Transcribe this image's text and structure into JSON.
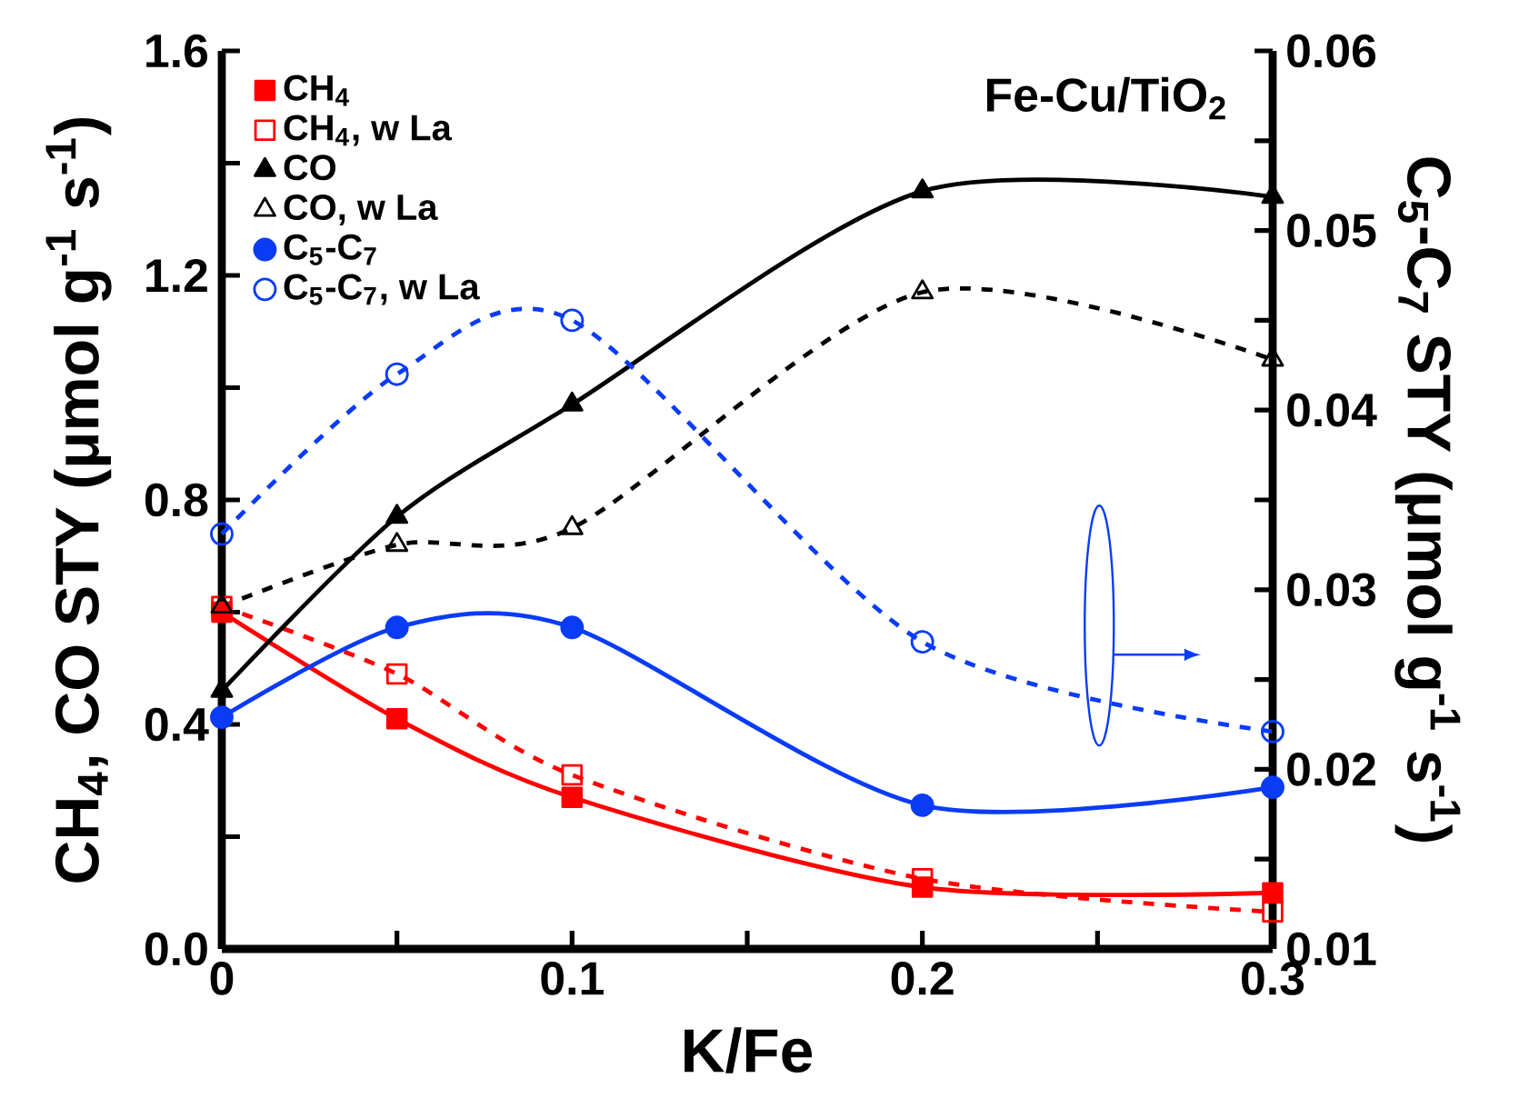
{
  "chart_data": {
    "type": "line",
    "annotations": [
      "Fe-Cu/TiO$_{2}$"
    ],
    "xlabel": "K/Fe",
    "ylabel": "CH$_{4}$, CO STY (μmol g$^{-1}$ s$^{-1}$)",
    "y2label": "C$_{5}$-C$_{7}$ STY (μmol g$^{-1}$ s$^{-1}$)",
    "x": [
      0,
      0.05,
      0.1,
      0.2,
      0.3
    ],
    "xlim": [
      0,
      0.3
    ],
    "xticks": [
      0,
      {
        "value": 0.05,
        "label": null
      },
      0.1,
      {
        "value": 0.15,
        "label": null
      },
      0.2,
      {
        "value": 0.25,
        "label": null
      },
      0.3
    ],
    "ylim": [
      0,
      1.6
    ],
    "yticks": [
      {
        "value": 0,
        "label": "0.0"
      },
      {
        "value": 0.2,
        "label": null
      },
      0.4,
      {
        "value": 0.6,
        "label": null
      },
      0.8,
      {
        "value": 1.0,
        "label": null
      },
      1.2,
      {
        "value": 1.4,
        "label": null
      },
      1.6
    ],
    "y2lim": [
      0.01,
      0.06
    ],
    "y2ticks": [
      0.01,
      {
        "value": 0.015,
        "label": null
      },
      0.02,
      {
        "value": 0.025,
        "label": null
      },
      0.03,
      {
        "value": 0.035,
        "label": null
      },
      0.04,
      {
        "value": 0.045,
        "label": null
      },
      0.05,
      {
        "value": 0.055,
        "label": null
      },
      0.06
    ],
    "grid": false,
    "legend": "top left",
    "series": [
      {
        "name": "CH$_{4}$",
        "color": "#ff0000",
        "marker": "square",
        "line_style": "solid",
        "values": [
          0.6,
          0.41,
          0.27,
          0.11,
          0.1
        ]
      },
      {
        "name": "CH$_{4}$, w La",
        "color": "#ff0000",
        "marker": "square",
        "line_style": "dashed",
        "values": [
          0.61,
          0.49,
          0.31,
          0.125,
          0.066
        ]
      },
      {
        "name": "CO",
        "color": "#000000",
        "marker": "triangle",
        "line_style": "solid",
        "values": [
          0.46,
          0.77,
          0.97,
          1.35,
          1.34
        ]
      },
      {
        "name": "CO, w La",
        "color": "#000000",
        "marker": "triangle",
        "line_style": "dashed",
        "values": [
          0.61,
          0.72,
          0.75,
          1.17,
          1.05
        ]
      },
      {
        "name": "C$_{5}$-C$_{7}$",
        "color": "#0a3cf5",
        "marker": "circle",
        "line_style": "solid",
        "axis": "y2",
        "values": [
          0.0229,
          0.0279,
          0.0279,
          0.018,
          0.019
        ]
      },
      {
        "name": "C$_{5}$-C$_{7}$, w La",
        "color": "#0a3cf5",
        "marker": "circle",
        "line_style": "dashed",
        "axis": "y2",
        "values": [
          0.0331,
          0.042,
          0.045,
          0.0271,
          0.0221
        ]
      }
    ]
  }
}
